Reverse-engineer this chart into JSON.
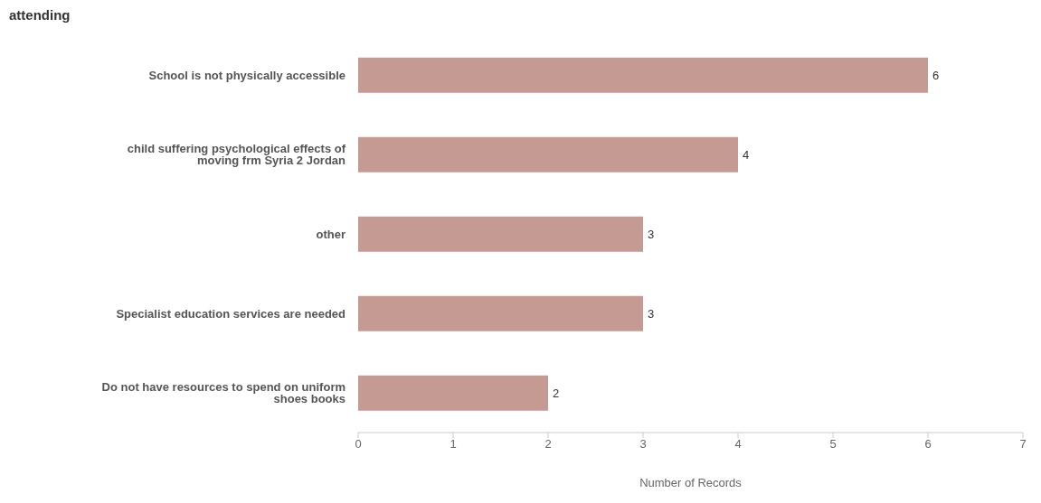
{
  "chart_data": {
    "type": "bar",
    "title": "attending",
    "orientation": "horizontal",
    "categories": [
      "School is not physically accessible",
      "child suffering psychological effects of moving frm Syria 2 Jordan",
      "other",
      "Specialist education services are needed",
      "Do not have resources to spend on uniform shoes books"
    ],
    "values": [
      6,
      4,
      3,
      3,
      2
    ],
    "color": "#c49a92",
    "xlabel": "Number of Records",
    "xlim": [
      0,
      7
    ],
    "xticks": [
      0,
      1,
      2,
      3,
      4,
      5,
      6,
      7
    ],
    "data_labels": true,
    "grid": false
  }
}
